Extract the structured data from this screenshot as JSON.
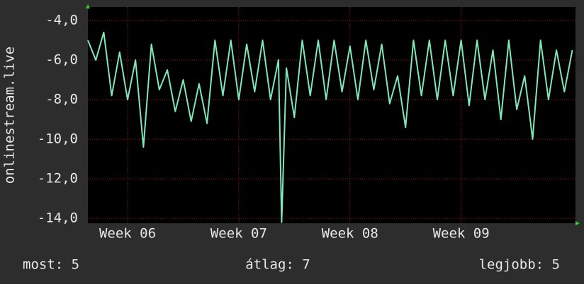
{
  "chart_data": {
    "type": "line",
    "y_label": "onlinestream.live",
    "xlim": [
      0,
      30.7
    ],
    "xticks": [
      {
        "value": 2.5,
        "label": "Week 06"
      },
      {
        "value": 9.5,
        "label": "Week 07"
      },
      {
        "value": 16.5,
        "label": "Week 08"
      },
      {
        "value": 23.5,
        "label": "Week 09"
      }
    ],
    "ylim": [
      -14.25,
      -3.32
    ],
    "yticks": [
      {
        "value": -4,
        "label": "-4,0"
      },
      {
        "value": -6,
        "label": "-6,0"
      },
      {
        "value": -8,
        "label": "-8,0"
      },
      {
        "value": -10,
        "label": "-10,0"
      },
      {
        "value": -12,
        "label": "-12,0"
      },
      {
        "value": -14,
        "label": "-14,0"
      }
    ],
    "grid": true,
    "x": [
      0,
      0.5,
      1,
      1.5,
      2,
      2.5,
      3,
      3.5,
      4,
      4.5,
      5,
      5.5,
      6,
      6.5,
      7,
      7.5,
      8,
      8.5,
      9,
      9.5,
      10,
      10.5,
      11,
      11.5,
      12,
      12.2,
      12.5,
      13,
      13.5,
      14,
      14.5,
      15,
      15.5,
      16,
      16.5,
      17,
      17.5,
      18,
      18.5,
      19,
      19.5,
      20,
      20.5,
      21,
      21.5,
      22,
      22.5,
      23,
      23.5,
      24,
      24.5,
      25,
      25.5,
      26,
      26.5,
      27,
      27.5,
      28,
      28.5,
      29,
      29.5,
      30,
      30.5
    ],
    "series": [
      {
        "name": "onlinestream.live",
        "color": "#7ee8b8",
        "values": [
          -5,
          -6,
          -4.6,
          -7.8,
          -5.6,
          -8,
          -6,
          -10.4,
          -5.2,
          -7.5,
          -6.5,
          -8.6,
          -7,
          -9.1,
          -7.2,
          -9.2,
          -5,
          -7.8,
          -5,
          -8,
          -5.2,
          -7.6,
          -5,
          -8,
          -6,
          -14.2,
          -6.4,
          -8.9,
          -5,
          -7.8,
          -5,
          -8,
          -5,
          -7.6,
          -5.3,
          -8,
          -5,
          -7.5,
          -5.2,
          -8.2,
          -6.8,
          -9.4,
          -5,
          -7.8,
          -5,
          -8,
          -5,
          -7.8,
          -5,
          -8.3,
          -5,
          -8,
          -5.5,
          -9,
          -5,
          -8.5,
          -6.8,
          -10,
          -5,
          -8,
          -5.5,
          -7.6,
          -5.5
        ]
      }
    ],
    "legend": [
      "most: 5",
      "átlag: 7",
      "legjobb: 5"
    ]
  }
}
